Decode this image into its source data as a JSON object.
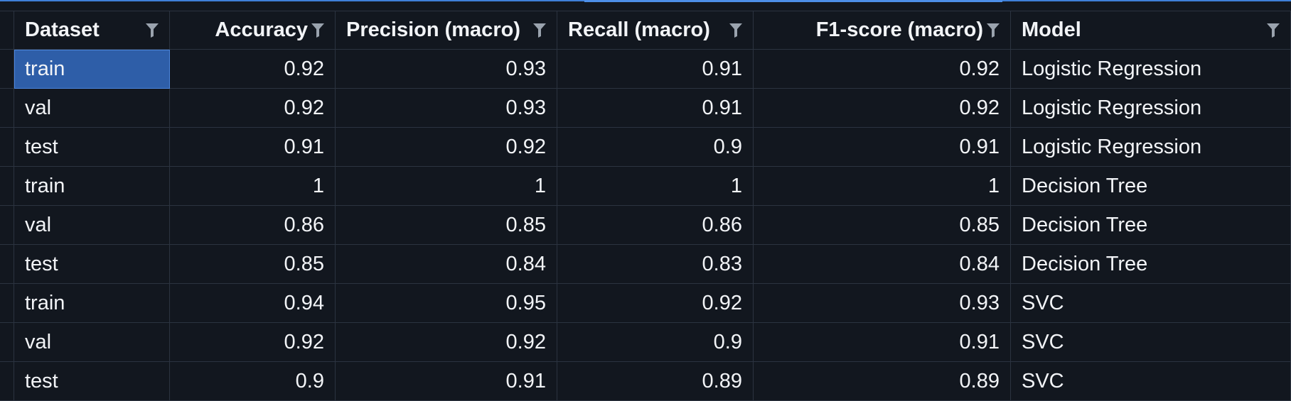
{
  "table": {
    "columns": [
      {
        "label": "Dataset",
        "align": "left"
      },
      {
        "label": "Accuracy",
        "align": "right"
      },
      {
        "label": "Precision (macro)",
        "align": "left"
      },
      {
        "label": "Recall (macro)",
        "align": "left"
      },
      {
        "label": "F1-score (macro)",
        "align": "right"
      },
      {
        "label": "Model",
        "align": "left"
      }
    ],
    "filter_icon": "filter-icon",
    "rows": [
      {
        "dataset": "train",
        "accuracy": "0.92",
        "precision": "0.93",
        "recall": "0.91",
        "f1": "0.92",
        "model": "Logistic Regression"
      },
      {
        "dataset": "val",
        "accuracy": "0.92",
        "precision": "0.93",
        "recall": "0.91",
        "f1": "0.92",
        "model": "Logistic Regression"
      },
      {
        "dataset": "test",
        "accuracy": "0.91",
        "precision": "0.92",
        "recall": "0.9",
        "f1": "0.91",
        "model": "Logistic Regression"
      },
      {
        "dataset": "train",
        "accuracy": "1",
        "precision": "1",
        "recall": "1",
        "f1": "1",
        "model": "Decision Tree"
      },
      {
        "dataset": "val",
        "accuracy": "0.86",
        "precision": "0.85",
        "recall": "0.86",
        "f1": "0.85",
        "model": "Decision Tree"
      },
      {
        "dataset": "test",
        "accuracy": "0.85",
        "precision": "0.84",
        "recall": "0.83",
        "f1": "0.84",
        "model": "Decision Tree"
      },
      {
        "dataset": "train",
        "accuracy": "0.94",
        "precision": "0.95",
        "recall": "0.92",
        "f1": "0.93",
        "model": "SVC"
      },
      {
        "dataset": "val",
        "accuracy": "0.92",
        "precision": "0.92",
        "recall": "0.9",
        "f1": "0.91",
        "model": "SVC"
      },
      {
        "dataset": "test",
        "accuracy": "0.9",
        "precision": "0.91",
        "recall": "0.89",
        "f1": "0.89",
        "model": "SVC"
      }
    ],
    "selected_cell": {
      "row": 0,
      "column": "dataset"
    }
  },
  "colors": {
    "background": "#12171f",
    "grid_line": "#2b3340",
    "selection": "#2e5ea8",
    "accent": "#3f7fd8",
    "text": "#f2f4f7",
    "icon": "#9aa3ae"
  }
}
